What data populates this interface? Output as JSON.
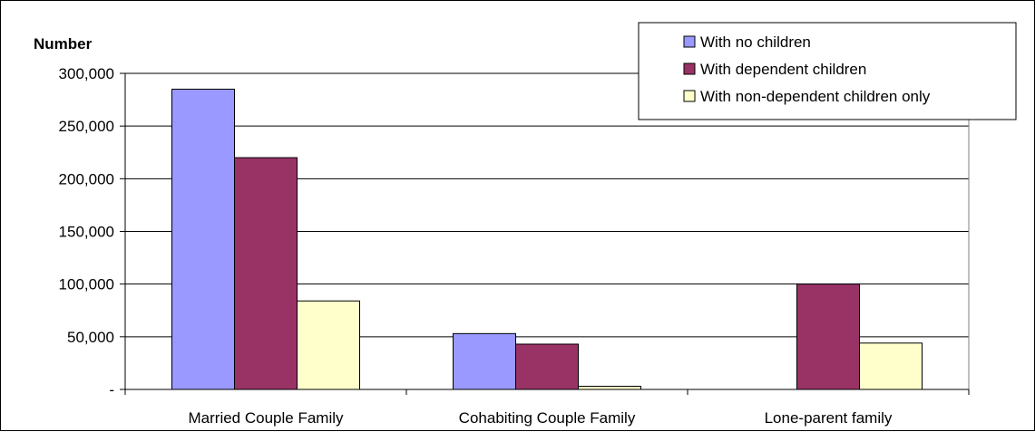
{
  "chart_data": {
    "type": "bar",
    "title": "",
    "xlabel": "",
    "ylabel": "Number",
    "ylim": [
      0,
      300000
    ],
    "yticks": [
      0,
      50000,
      100000,
      150000,
      200000,
      250000,
      300000
    ],
    "ytick_labels": [
      "-",
      "50,000",
      "100,000",
      "150,000",
      "200,000",
      "250,000",
      "300,000"
    ],
    "categories": [
      "Married Couple Family",
      "Cohabiting Couple Family",
      "Lone-parent family"
    ],
    "series": [
      {
        "name": "With no children",
        "color": "#9999ff",
        "values": [
          285000,
          53000,
          0
        ]
      },
      {
        "name": "With dependent children",
        "color": "#993366",
        "values": [
          220000,
          43000,
          100000
        ]
      },
      {
        "name": "With non-dependent children only",
        "color": "#ffffcc",
        "values": [
          84000,
          3000,
          44000
        ]
      }
    ],
    "grid": true,
    "legend_position": "top-right"
  }
}
